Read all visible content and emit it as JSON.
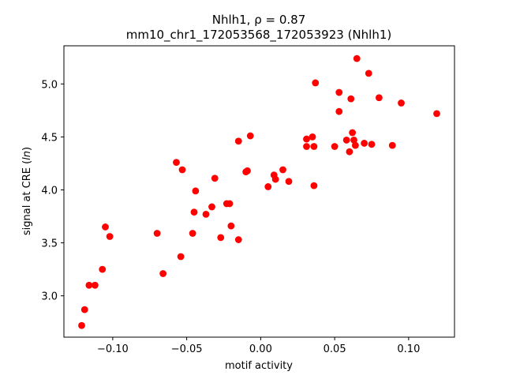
{
  "chart_data": {
    "type": "scatter",
    "title_line1": "Nhlh1, ρ = 0.87",
    "title_line2": "mm10_chr1_172053568_172053923 (Nhlh1)",
    "xlabel": "motif activity",
    "ylabel": "signal at CRE (ln)",
    "xlim": [
      -0.133,
      0.131
    ],
    "ylim": [
      2.61,
      5.36
    ],
    "xticks": [
      -0.1,
      -0.05,
      0.0,
      0.05,
      0.1
    ],
    "xtick_labels": [
      "−0.10",
      "−0.05",
      "0.00",
      "0.05",
      "0.10"
    ],
    "yticks": [
      3.0,
      3.5,
      4.0,
      4.5,
      5.0
    ],
    "ytick_labels": [
      "3.0",
      "3.5",
      "4.0",
      "4.5",
      "5.0"
    ],
    "grid": false,
    "legend": "none",
    "marker_color": "#ff0000",
    "points": [
      {
        "x": -0.121,
        "y": 2.72
      },
      {
        "x": -0.119,
        "y": 2.87
      },
      {
        "x": -0.116,
        "y": 3.1
      },
      {
        "x": -0.112,
        "y": 3.1
      },
      {
        "x": -0.107,
        "y": 3.25
      },
      {
        "x": -0.105,
        "y": 3.65
      },
      {
        "x": -0.102,
        "y": 3.56
      },
      {
        "x": -0.07,
        "y": 3.59
      },
      {
        "x": -0.066,
        "y": 3.21
      },
      {
        "x": -0.057,
        "y": 4.26
      },
      {
        "x": -0.054,
        "y": 3.37
      },
      {
        "x": -0.053,
        "y": 4.19
      },
      {
        "x": -0.046,
        "y": 3.59
      },
      {
        "x": -0.045,
        "y": 3.79
      },
      {
        "x": -0.044,
        "y": 3.99
      },
      {
        "x": -0.037,
        "y": 3.77
      },
      {
        "x": -0.033,
        "y": 3.84
      },
      {
        "x": -0.031,
        "y": 4.11
      },
      {
        "x": -0.027,
        "y": 3.55
      },
      {
        "x": -0.023,
        "y": 3.87
      },
      {
        "x": -0.021,
        "y": 3.87
      },
      {
        "x": -0.02,
        "y": 3.66
      },
      {
        "x": -0.015,
        "y": 3.53
      },
      {
        "x": -0.015,
        "y": 4.46
      },
      {
        "x": -0.01,
        "y": 4.17
      },
      {
        "x": -0.009,
        "y": 4.18
      },
      {
        "x": -0.007,
        "y": 4.51
      },
      {
        "x": 0.005,
        "y": 4.03
      },
      {
        "x": 0.009,
        "y": 4.14
      },
      {
        "x": 0.01,
        "y": 4.1
      },
      {
        "x": 0.015,
        "y": 4.19
      },
      {
        "x": 0.019,
        "y": 4.08
      },
      {
        "x": 0.031,
        "y": 4.48
      },
      {
        "x": 0.031,
        "y": 4.41
      },
      {
        "x": 0.035,
        "y": 4.5
      },
      {
        "x": 0.036,
        "y": 4.41
      },
      {
        "x": 0.036,
        "y": 4.04
      },
      {
        "x": 0.037,
        "y": 5.01
      },
      {
        "x": 0.05,
        "y": 4.41
      },
      {
        "x": 0.053,
        "y": 4.92
      },
      {
        "x": 0.053,
        "y": 4.74
      },
      {
        "x": 0.058,
        "y": 4.47
      },
      {
        "x": 0.06,
        "y": 4.36
      },
      {
        "x": 0.061,
        "y": 4.86
      },
      {
        "x": 0.062,
        "y": 4.54
      },
      {
        "x": 0.063,
        "y": 4.47
      },
      {
        "x": 0.064,
        "y": 4.42
      },
      {
        "x": 0.065,
        "y": 5.24
      },
      {
        "x": 0.07,
        "y": 4.44
      },
      {
        "x": 0.073,
        "y": 5.1
      },
      {
        "x": 0.075,
        "y": 4.43
      },
      {
        "x": 0.08,
        "y": 4.87
      },
      {
        "x": 0.089,
        "y": 4.42
      },
      {
        "x": 0.095,
        "y": 4.82
      },
      {
        "x": 0.119,
        "y": 4.72
      }
    ]
  }
}
